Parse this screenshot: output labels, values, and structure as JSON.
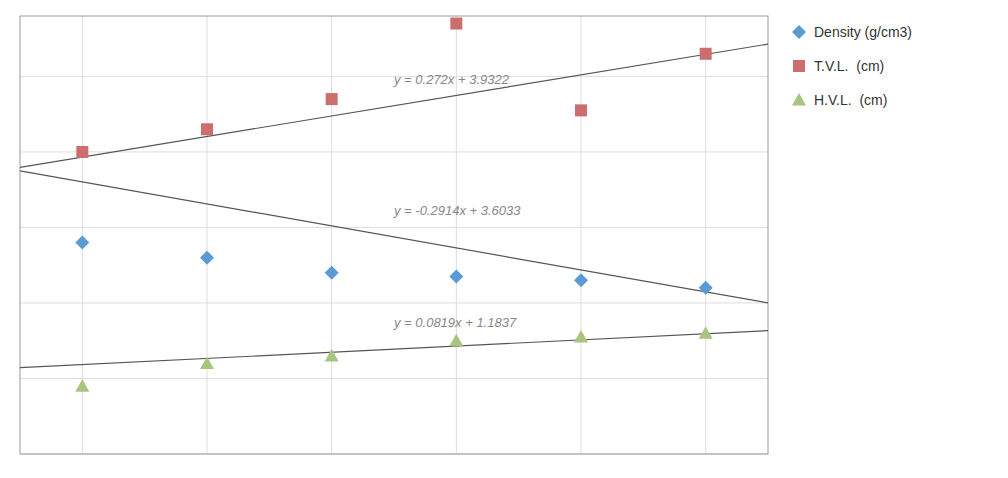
{
  "chart_data": {
    "type": "scatter",
    "xlim": [
      -0.5,
      5.5
    ],
    "ylim": [
      0.0,
      5.8
    ],
    "xticks": [
      0,
      1,
      2,
      3,
      4,
      5
    ],
    "yticks": [
      0,
      1,
      2,
      3,
      4,
      5
    ],
    "grid": true,
    "tick_labels": false,
    "legend": "right",
    "x": [
      0,
      1,
      2,
      3,
      4,
      5
    ],
    "series": [
      {
        "name": "Density (g/cm3)",
        "color": "#5b9bd5",
        "marker": "diamond",
        "values": [
          2.8,
          2.6,
          2.4,
          2.35,
          2.3,
          2.2
        ],
        "trend_slope": -0.2914,
        "trend_intercept": 3.6033,
        "equation": "y = -0.2914x + 3.6033"
      },
      {
        "name": "T.V.L.  (cm)",
        "color": "#cd6e6e",
        "marker": "square",
        "values": [
          4.0,
          4.3,
          4.7,
          5.7,
          4.55,
          5.3
        ],
        "trend_slope": 0.272,
        "trend_intercept": 3.9322,
        "equation": "y = 0.272x + 3.9322"
      },
      {
        "name": "H.V.L.  (cm)",
        "color": "#a9c47f",
        "marker": "triangle",
        "values": [
          0.9,
          1.2,
          1.3,
          1.5,
          1.55,
          1.6
        ],
        "trend_slope": 0.0819,
        "trend_intercept": 1.1837,
        "equation": "y = 0.0819x + 1.1837"
      }
    ]
  }
}
